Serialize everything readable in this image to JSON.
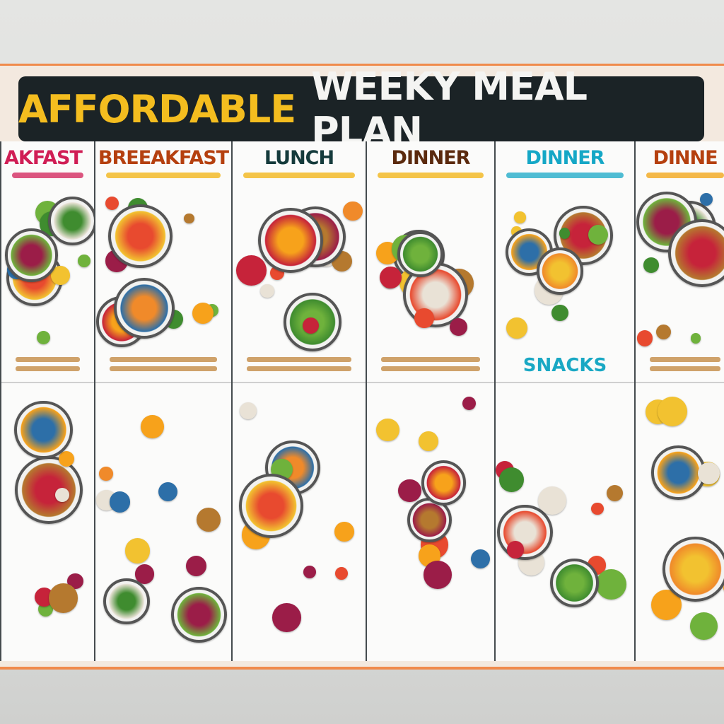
{
  "title": {
    "part1": "AFFORDABLE",
    "part2": "WEEKY MEAL PLAN"
  },
  "columns": [
    {
      "header": "AKFAST",
      "color": "#d01e55",
      "sub_color": "#d01e55"
    },
    {
      "header": "BREEAKFAST",
      "color": "#b5400f",
      "sub_color": "#f2b20c"
    },
    {
      "header": "LUNCH",
      "color": "#153b3c",
      "sub_color": "#f2b20c"
    },
    {
      "header": "DINNER",
      "color": "#5b2a0e",
      "sub_color": "#f2b20c"
    },
    {
      "header": "DINNER",
      "color": "#15a7c6",
      "sub_color": "#15a7c6"
    },
    {
      "header": "DINNE",
      "color": "#b5400f",
      "sub_color": "#f2a20c"
    }
  ],
  "snacks_label": "SNACKS",
  "colors": {
    "accent_orange": "#f08a4b",
    "banner": "#1b2326",
    "title_yellow": "#f4bd1f"
  }
}
